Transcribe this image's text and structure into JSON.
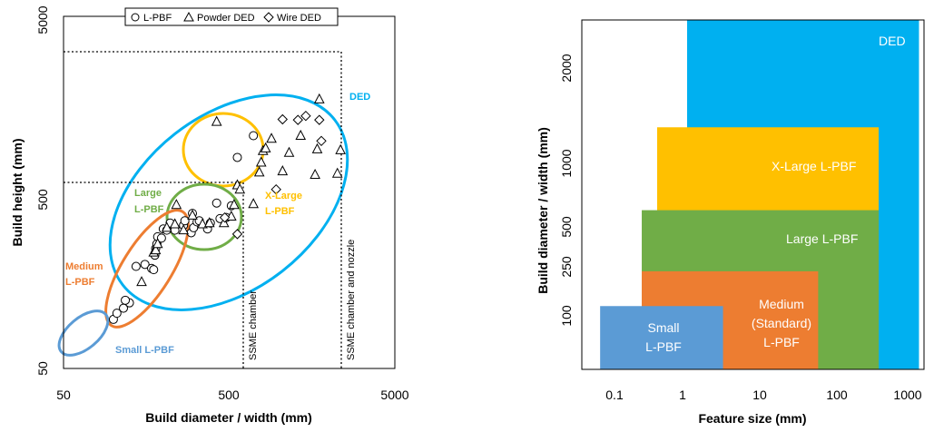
{
  "chart_data": [
    {
      "type": "scatter",
      "x_scale": "log",
      "y_scale": "log",
      "xlim": [
        50,
        5000
      ],
      "ylim": [
        50,
        5000
      ],
      "xlabel": "Build diameter / width (mm)",
      "ylabel": "Build height (mm)",
      "x_ticks": [
        "50",
        "500",
        "5000"
      ],
      "y_ticks": [
        "50",
        "500",
        "5000"
      ],
      "legend": {
        "position": "top",
        "items": [
          "L-PBF",
          "Powder DED",
          "Wire DED"
        ]
      },
      "series": [
        {
          "name": "L-PBF",
          "marker": "circle",
          "points": [
            [
              100,
              95
            ],
            [
              105,
              103
            ],
            [
              115,
              110
            ],
            [
              125,
              118
            ],
            [
              118,
              122
            ],
            [
              137,
              190
            ],
            [
              155,
              195
            ],
            [
              170,
              185
            ],
            [
              175,
              182
            ],
            [
              178,
              220
            ],
            [
              180,
              240
            ],
            [
              183,
              255
            ],
            [
              185,
              280
            ],
            [
              195,
              275
            ],
            [
              200,
              310
            ],
            [
              210,
              305
            ],
            [
              220,
              335
            ],
            [
              235,
              305
            ],
            [
              265,
              325
            ],
            [
              270,
              345
            ],
            [
              295,
              295
            ],
            [
              300,
              380
            ],
            [
              305,
              315
            ],
            [
              320,
              340
            ],
            [
              330,
              345
            ],
            [
              370,
              310
            ],
            [
              385,
              335
            ],
            [
              420,
              435
            ],
            [
              440,
              355
            ],
            [
              480,
              360
            ],
            [
              515,
              420
            ],
            [
              560,
              790
            ],
            [
              700,
              1050
            ]
          ]
        },
        {
          "name": "Powder DED",
          "marker": "triangle",
          "points": [
            [
              148,
              155
            ],
            [
              175,
              228
            ],
            [
              180,
              235
            ],
            [
              185,
              255
            ],
            [
              210,
              315
            ],
            [
              235,
              330
            ],
            [
              240,
              425
            ],
            [
              265,
              305
            ],
            [
              300,
              370
            ],
            [
              345,
              330
            ],
            [
              380,
              335
            ],
            [
              420,
              1260
            ],
            [
              465,
              335
            ],
            [
              515,
              365
            ],
            [
              535,
              425
            ],
            [
              560,
              550
            ],
            [
              580,
              520
            ],
            [
              700,
              430
            ],
            [
              760,
              650
            ],
            [
              780,
              740
            ],
            [
              800,
              860
            ],
            [
              830,
              890
            ],
            [
              900,
              1010
            ],
            [
              1050,
              660
            ],
            [
              1150,
              840
            ],
            [
              1350,
              1050
            ],
            [
              1650,
              630
            ],
            [
              1700,
              880
            ],
            [
              1750,
              1690
            ],
            [
              2250,
              640
            ],
            [
              2350,
              870
            ]
          ]
        },
        {
          "name": "Wire DED",
          "marker": "diamond",
          "points": [
            [
              470,
              360
            ],
            [
              560,
              290
            ],
            [
              960,
              520
            ],
            [
              1050,
              1300
            ],
            [
              1300,
              1290
            ],
            [
              1450,
              1360
            ],
            [
              1750,
              1290
            ],
            [
              1800,
              980
            ]
          ]
        }
      ],
      "regions": [
        {
          "label": "DED",
          "color": "#00b0f0"
        },
        {
          "label": "X-Large\nL-PBF",
          "color": "#ffc000"
        },
        {
          "label": "Large\nL-PBF",
          "color": "#70ad47"
        },
        {
          "label": "Medium\nL-PBF",
          "color": "#ed7d31"
        },
        {
          "label": "Small L-PBF",
          "color": "#5b9bd5"
        }
      ],
      "reference_lines": [
        {
          "label": "SSME chamber",
          "x": 550,
          "y": 590
        },
        {
          "label": "SSME chamber and nozzle",
          "x": 2700,
          "y": 3800
        }
      ]
    },
    {
      "type": "bar",
      "orientation": "horizontal-range",
      "x_scale": "log",
      "xlim": [
        0.04,
        1400
      ],
      "xlabel": "Feature size (mm)",
      "ylabel": "Build diameter / width (mm)",
      "x_ticks": [
        "0.1",
        "1",
        "10",
        "100",
        "1000"
      ],
      "y_ticks": [
        "100",
        "250",
        "500",
        "1000",
        "2000"
      ],
      "bars": [
        {
          "label": "DED",
          "x_start": 1,
          "x_end": 1200,
          "y_start": 0,
          "y_end": 5000,
          "color": "#00b0f0"
        },
        {
          "label": "X-Large L-PBF",
          "x_start": 0.4,
          "x_end": 350,
          "y_start": 0,
          "y_end": 1300,
          "color": "#ffc000"
        },
        {
          "label": "Large L-PBF",
          "x_start": 0.25,
          "x_end": 350,
          "y_start": 0,
          "y_end": 600,
          "color": "#70ad47"
        },
        {
          "label": "Medium (Standard) L-PBF",
          "x_start": 0.25,
          "x_end": 55,
          "y_start": 0,
          "y_end": 230,
          "color": "#ed7d31"
        },
        {
          "label": "Small L-PBF",
          "x_start": 0.07,
          "x_end": 3,
          "y_start": 0,
          "y_end": 120,
          "color": "#5b9bd5"
        }
      ]
    }
  ]
}
